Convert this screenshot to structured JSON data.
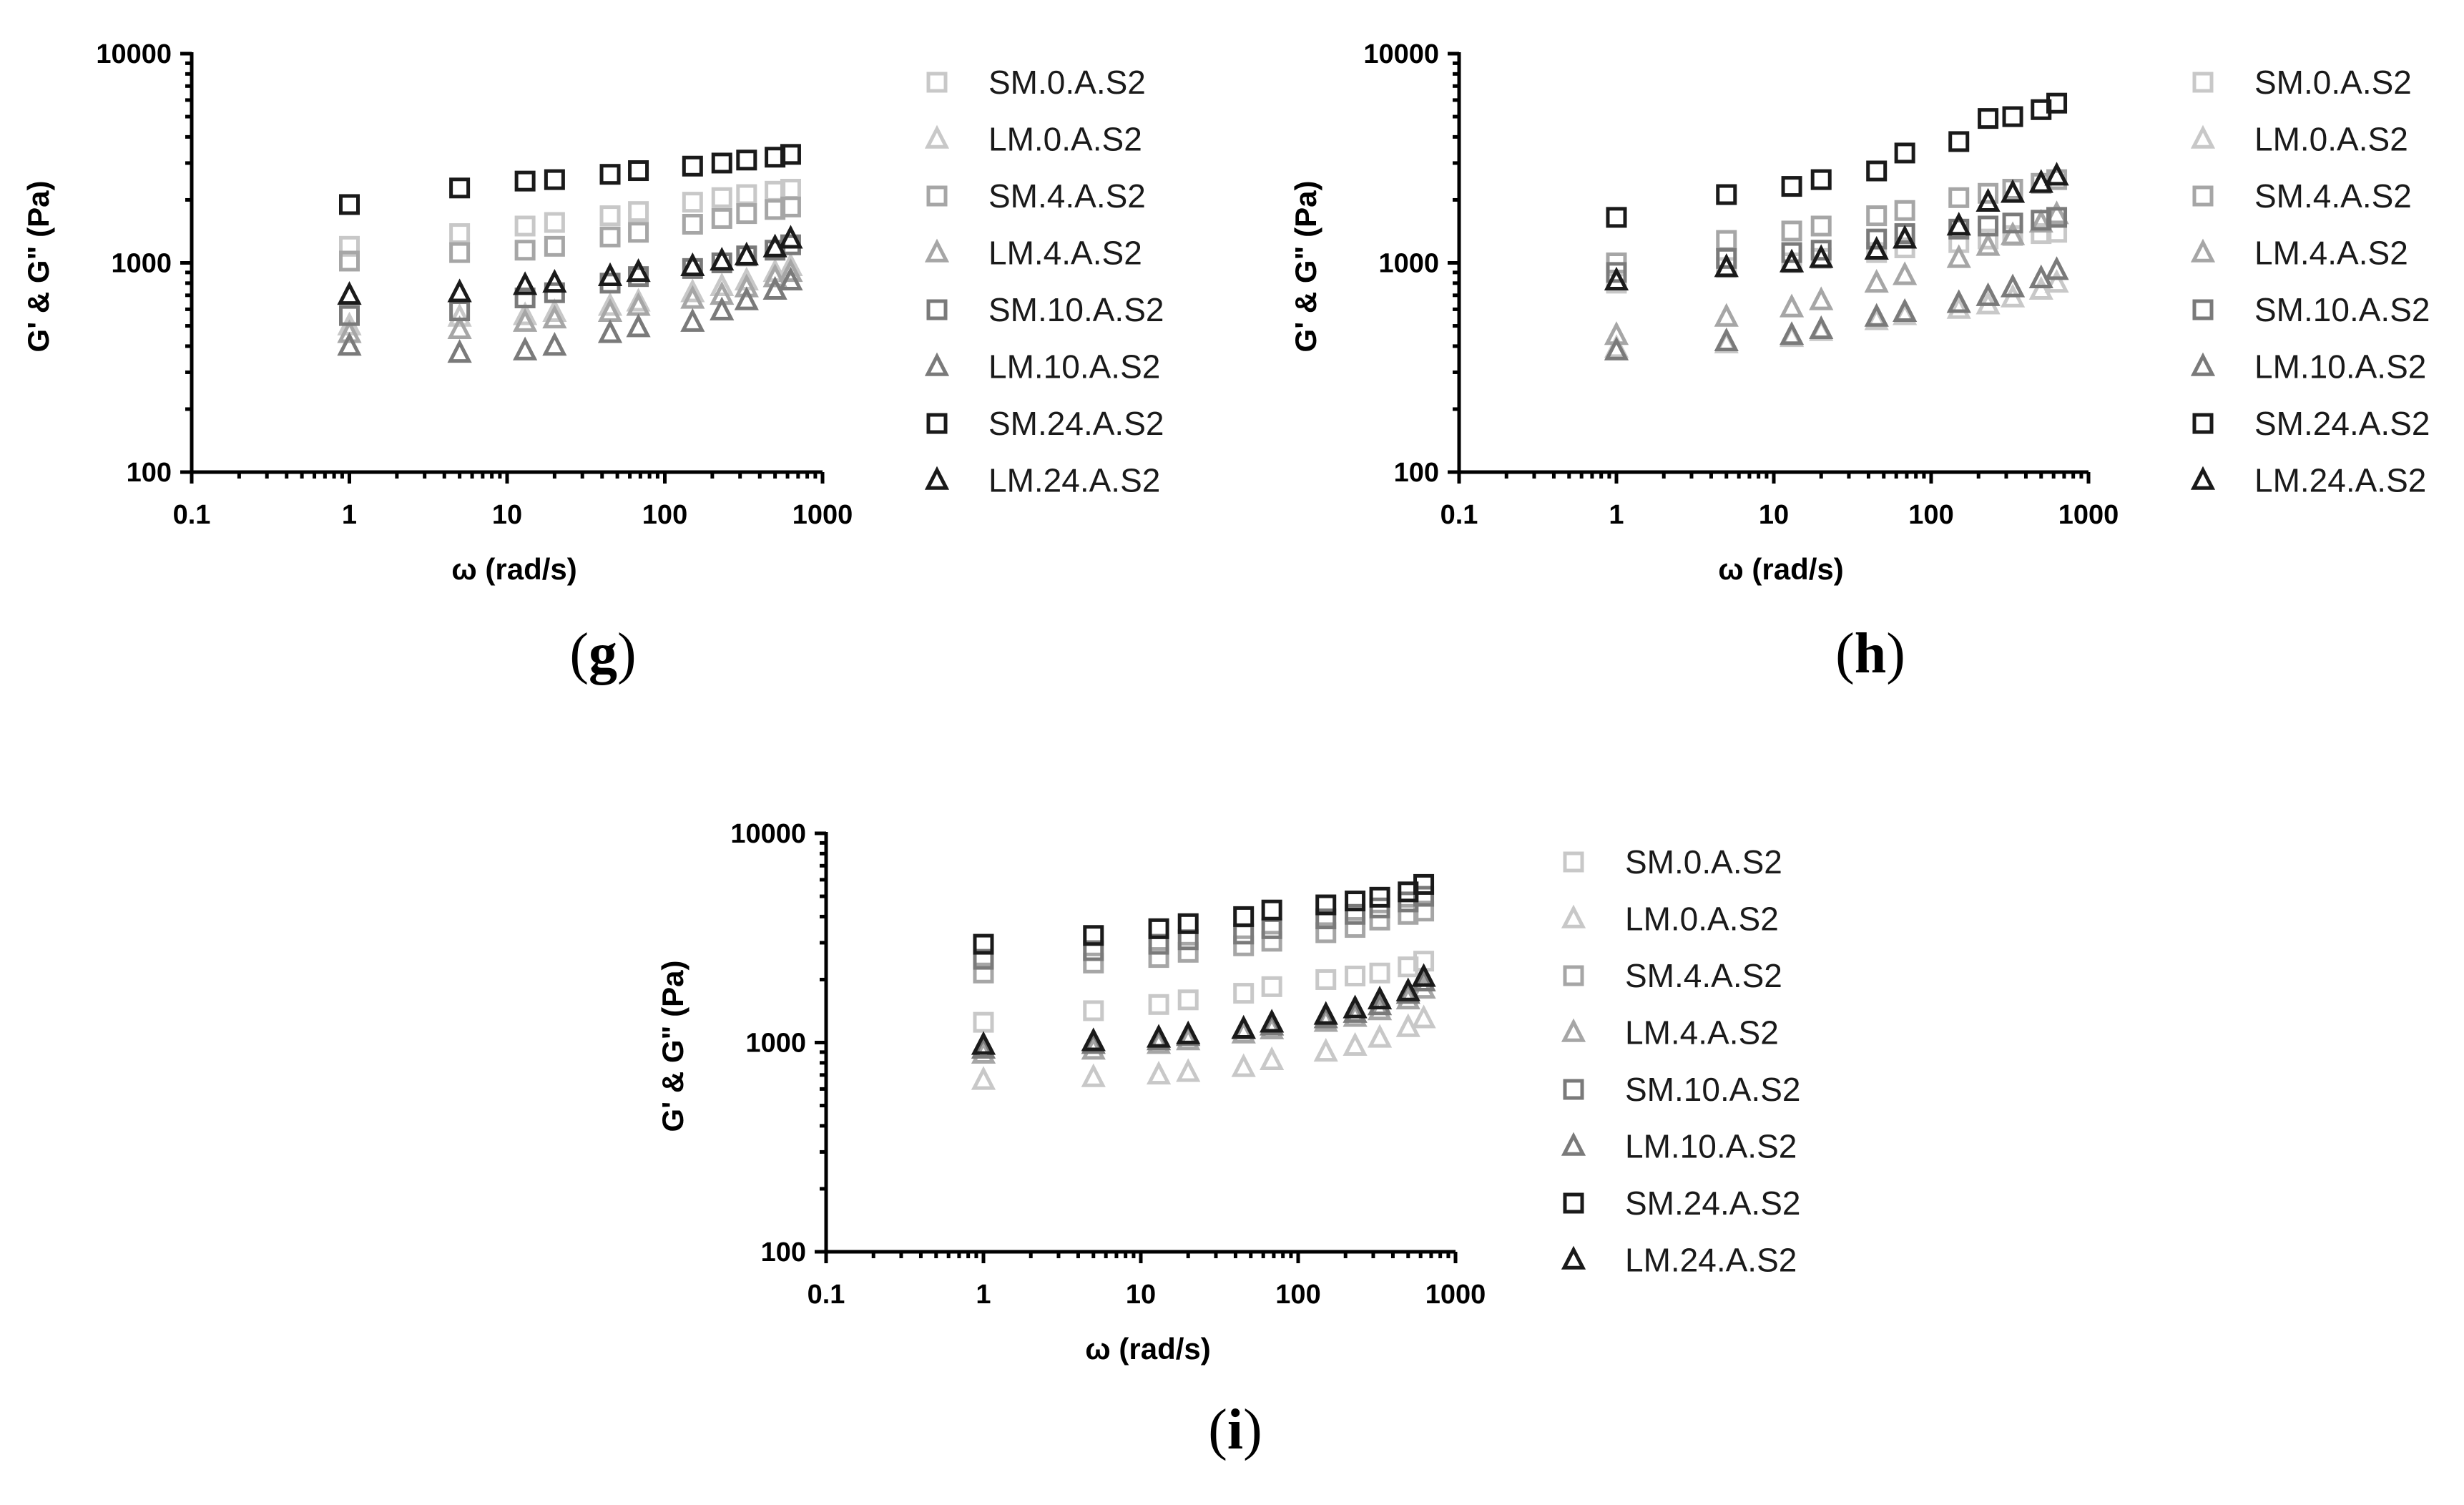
{
  "chart_data": [
    {
      "panel": "(g)",
      "panel_letter": "g",
      "type": "scatter",
      "xlabel": "ω (rad/s)",
      "ylabel": "G' & G\" (Pa)",
      "xscale": "log",
      "yscale": "log",
      "xlim": [
        0.1,
        1000
      ],
      "ylim": [
        100,
        10000
      ],
      "x_ticks": [
        "0.1",
        "1",
        "10",
        "100",
        "1000"
      ],
      "y_ticks": [
        "100",
        "1000",
        "10000"
      ],
      "legend_position": "right",
      "x": [
        1,
        5,
        13,
        20,
        45,
        68,
        150,
        230,
        330,
        500,
        628
      ],
      "series": [
        {
          "name": "SM.0.A.S2",
          "marker": "square",
          "color": "#c8c8c8",
          "values": [
            1200,
            1380,
            1500,
            1560,
            1680,
            1760,
            1950,
            2050,
            2120,
            2200,
            2250
          ]
        },
        {
          "name": "LM.0.A.S2",
          "marker": "triangle",
          "color": "#c8c8c8",
          "values": [
            500,
            550,
            560,
            580,
            620,
            650,
            720,
            770,
            820,
            900,
            960
          ]
        },
        {
          "name": "SM.4.A.S2",
          "marker": "square",
          "color": "#a6a6a6",
          "values": [
            1020,
            1120,
            1150,
            1200,
            1330,
            1400,
            1530,
            1630,
            1720,
            1800,
            1850
          ]
        },
        {
          "name": "LM.4.A.S2",
          "marker": "triangle",
          "color": "#a6a6a6",
          "values": [
            460,
            480,
            520,
            540,
            580,
            620,
            670,
            700,
            760,
            850,
            900
          ]
        },
        {
          "name": "SM.10.A.S2",
          "marker": "square",
          "color": "#7a7a7a",
          "values": [
            560,
            590,
            680,
            720,
            800,
            860,
            940,
            1000,
            1080,
            1150,
            1220
          ]
        },
        {
          "name": "LM.10.A.S2",
          "marker": "triangle",
          "color": "#7a7a7a",
          "values": [
            400,
            370,
            380,
            400,
            460,
            490,
            520,
            590,
            660,
            740,
            820
          ]
        },
        {
          "name": "SM.24.A.S2",
          "marker": "square",
          "color": "#1a1a1a",
          "values": [
            1900,
            2280,
            2460,
            2500,
            2650,
            2760,
            2900,
            3000,
            3100,
            3200,
            3300
          ]
        },
        {
          "name": "LM.24.A.S2",
          "marker": "triangle",
          "color": "#1a1a1a",
          "values": [
            700,
            720,
            780,
            800,
            860,
            900,
            960,
            1020,
            1080,
            1180,
            1300
          ]
        }
      ]
    },
    {
      "panel": "(h)",
      "panel_letter": "h",
      "type": "scatter",
      "xlabel": "ω (rad/s)",
      "ylabel": "G' & G\" (Pa)",
      "xscale": "log",
      "yscale": "log",
      "xlim": [
        0.1,
        1000
      ],
      "ylim": [
        100,
        10000
      ],
      "x_ticks": [
        "0.1",
        "1",
        "10",
        "100",
        "1000"
      ],
      "y_ticks": [
        "100",
        "1000",
        "10000"
      ],
      "legend_position": "right",
      "x": [
        1,
        5,
        13,
        20,
        45,
        68,
        150,
        230,
        330,
        500,
        628
      ],
      "series": [
        {
          "name": "SM.0.A.S2",
          "marker": "square",
          "color": "#c8c8c8",
          "values": [
            800,
            950,
            1000,
            1050,
            1120,
            1180,
            1250,
            1300,
            1350,
            1380,
            1400
          ]
        },
        {
          "name": "LM.0.A.S2",
          "marker": "triangle",
          "color": "#c8c8c8",
          "values": [
            390,
            410,
            440,
            470,
            530,
            560,
            600,
            630,
            680,
            740,
            800
          ]
        },
        {
          "name": "SM.4.A.S2",
          "marker": "square",
          "color": "#a6a6a6",
          "values": [
            1000,
            1280,
            1420,
            1500,
            1680,
            1780,
            2050,
            2150,
            2250,
            2400,
            2500
          ]
        },
        {
          "name": "LM.4.A.S2",
          "marker": "triangle",
          "color": "#a6a6a6",
          "values": [
            450,
            550,
            610,
            660,
            800,
            870,
            1050,
            1200,
            1350,
            1550,
            1700
          ]
        },
        {
          "name": "SM.10.A.S2",
          "marker": "square",
          "color": "#7a7a7a",
          "values": [
            900,
            1050,
            1120,
            1150,
            1300,
            1380,
            1450,
            1500,
            1550,
            1600,
            1650
          ]
        },
        {
          "name": "LM.10.A.S2",
          "marker": "triangle",
          "color": "#7a7a7a",
          "values": [
            380,
            420,
            450,
            480,
            550,
            580,
            640,
            690,
            760,
            840,
            920
          ]
        },
        {
          "name": "SM.24.A.S2",
          "marker": "square",
          "color": "#1a1a1a",
          "values": [
            1650,
            2120,
            2320,
            2500,
            2750,
            3350,
            3800,
            4900,
            5000,
            5400,
            5800
          ]
        },
        {
          "name": "LM.24.A.S2",
          "marker": "triangle",
          "color": "#1a1a1a",
          "values": [
            820,
            950,
            1000,
            1050,
            1150,
            1300,
            1500,
            1950,
            2150,
            2400,
            2600
          ]
        }
      ]
    },
    {
      "panel": "(i)",
      "panel_letter": "i",
      "type": "scatter",
      "xlabel": "ω (rad/s)",
      "ylabel": "G' & G\" (Pa)",
      "xscale": "log",
      "yscale": "log",
      "xlim": [
        0.1,
        1000
      ],
      "ylim": [
        100,
        10000
      ],
      "x_ticks": [
        "0.1",
        "1",
        "10",
        "100",
        "1000"
      ],
      "y_ticks": [
        "100",
        "1000",
        "10000"
      ],
      "legend_position": "right",
      "x": [
        1,
        5,
        13,
        20,
        45,
        68,
        150,
        230,
        330,
        500,
        628
      ],
      "series": [
        {
          "name": "SM.0.A.S2",
          "marker": "square",
          "color": "#c8c8c8",
          "values": [
            1250,
            1420,
            1520,
            1600,
            1720,
            1850,
            2000,
            2080,
            2150,
            2300,
            2450
          ]
        },
        {
          "name": "LM.0.A.S2",
          "marker": "triangle",
          "color": "#c8c8c8",
          "values": [
            660,
            680,
            700,
            720,
            760,
            820,
            900,
            960,
            1050,
            1180,
            1300
          ]
        },
        {
          "name": "SM.4.A.S2",
          "marker": "square",
          "color": "#a6a6a6",
          "values": [
            2150,
            2400,
            2550,
            2700,
            2900,
            3050,
            3350,
            3550,
            3850,
            4100,
            4250
          ]
        },
        {
          "name": "LM.4.A.S2",
          "marker": "triangle",
          "color": "#a6a6a6",
          "values": [
            880,
            920,
            980,
            1020,
            1100,
            1150,
            1250,
            1320,
            1420,
            1600,
            1800
          ]
        },
        {
          "name": "SM.10.A.S2",
          "marker": "square",
          "color": "#7a7a7a",
          "values": [
            2500,
            2750,
            2950,
            3100,
            3300,
            3500,
            3900,
            4100,
            4400,
            4700,
            5000
          ]
        },
        {
          "name": "LM.10.A.S2",
          "marker": "triangle",
          "color": "#7a7a7a",
          "values": [
            930,
            980,
            1020,
            1070,
            1150,
            1200,
            1300,
            1380,
            1500,
            1700,
            1950
          ]
        },
        {
          "name": "SM.24.A.S2",
          "marker": "square",
          "color": "#1a1a1a",
          "values": [
            2950,
            3250,
            3500,
            3700,
            4000,
            4300,
            4550,
            4750,
            4950,
            5250,
            5700
          ]
        },
        {
          "name": "LM.24.A.S2",
          "marker": "triangle",
          "color": "#1a1a1a",
          "values": [
            970,
            1010,
            1050,
            1090,
            1160,
            1240,
            1350,
            1450,
            1600,
            1750,
            2050
          ]
        }
      ]
    }
  ]
}
